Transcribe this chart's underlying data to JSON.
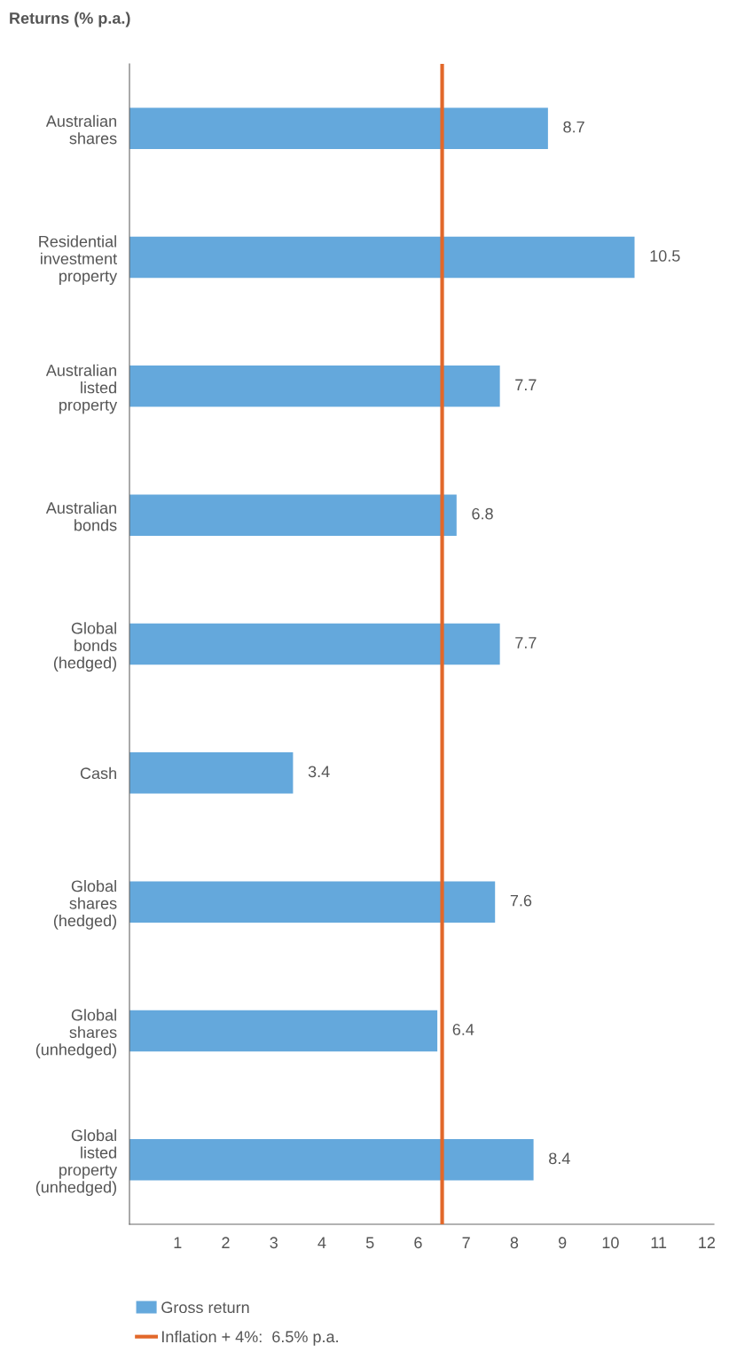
{
  "chart_data": {
    "type": "bar",
    "orientation": "horizontal",
    "title": "Returns (% p.a.)",
    "categories": [
      "Australian\nshares",
      "Residential\ninvestment\nproperty",
      "Australian\nlisted\nproperty",
      "Australian\nbonds",
      "Global\nbonds\n(hedged)",
      "Cash",
      "Global\nshares\n(hedged)",
      "Global\nshares\n(unhedged)",
      "Global\nlisted\nproperty\n(unhedged)"
    ],
    "series": [
      {
        "name": "Gross return",
        "color": "#64a8dc",
        "values": [
          8.7,
          10.5,
          7.7,
          6.8,
          7.7,
          3.4,
          7.6,
          6.4,
          8.4
        ]
      }
    ],
    "xlim": [
      0,
      12.15
    ],
    "xticks": [
      1,
      2,
      3,
      4,
      5,
      6,
      7,
      8,
      9,
      10,
      11,
      12
    ],
    "ref_lines": [
      {
        "axis": "x",
        "value": 6.5,
        "label": "Inflation + 4%:  6.5% p.a.",
        "color": "#e2682a",
        "line_style": "solid"
      }
    ],
    "data_labels": true,
    "legend": "bottom left",
    "grid": false
  }
}
